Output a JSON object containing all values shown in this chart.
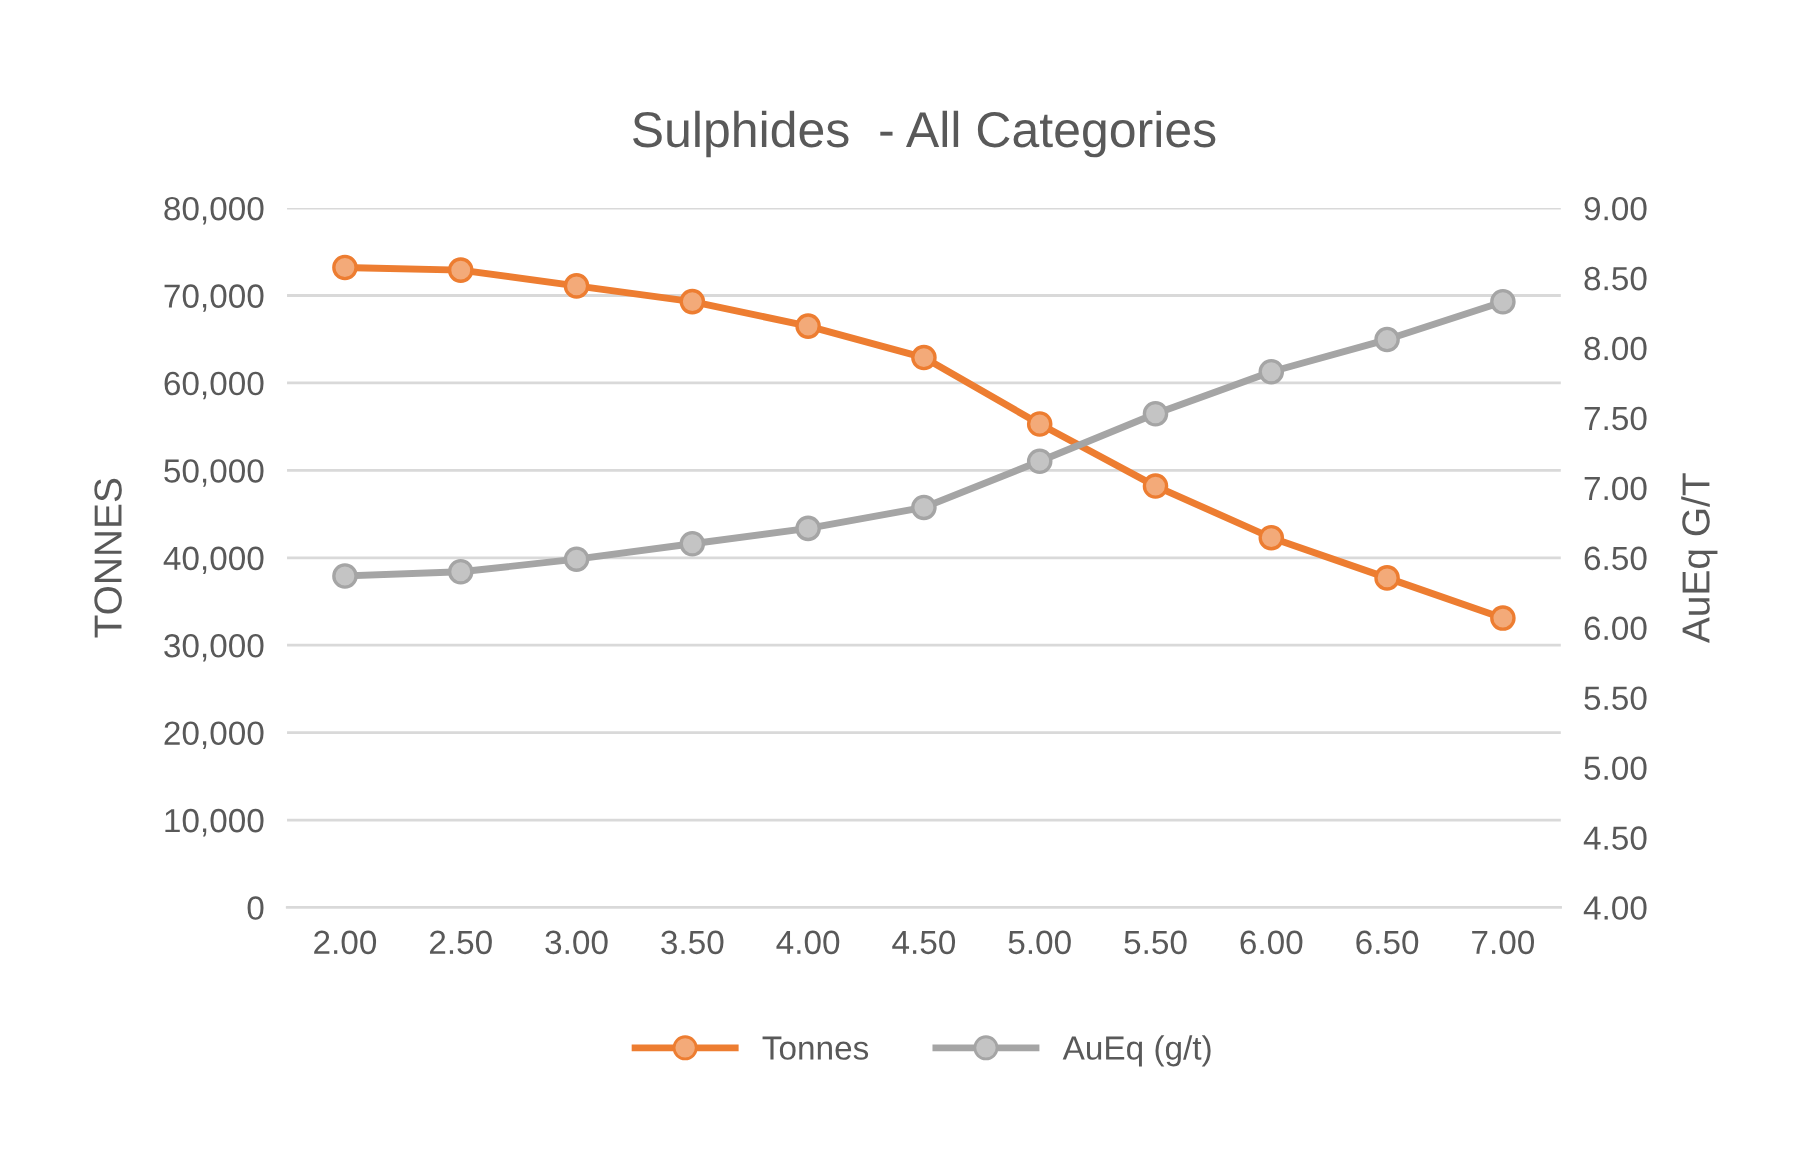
{
  "chart_data": {
    "type": "line",
    "title": "Sulphides  - All Categories",
    "ylabel": "TONNES",
    "y2label": "AuEq G/T",
    "categories": [
      "2.00",
      "2.50",
      "3.00",
      "3.50",
      "4.00",
      "4.50",
      "5.00",
      "5.50",
      "6.00",
      "6.50",
      "7.00"
    ],
    "series": [
      {
        "name": "Tonnes",
        "color": "#ed7d31",
        "values": [
          73200,
          72900,
          71100,
          69300,
          66500,
          62900,
          55300,
          48200,
          42300,
          37700,
          33100
        ]
      },
      {
        "name": "AuEq (g/t)",
        "color": "#a5a5a5",
        "axis": "y2",
        "values": [
          6.37,
          6.4,
          6.49,
          6.6,
          6.71,
          6.86,
          7.19,
          7.53,
          7.83,
          8.06,
          8.33
        ]
      }
    ],
    "ylim": [
      0,
      80000
    ],
    "yticks": [
      {
        "value": 0,
        "label": "0"
      },
      {
        "value": 10000,
        "label": "10,000"
      },
      {
        "value": 20000,
        "label": "20,000"
      },
      {
        "value": 30000,
        "label": "30,000"
      },
      {
        "value": 40000,
        "label": "40,000"
      },
      {
        "value": 50000,
        "label": "50,000"
      },
      {
        "value": 60000,
        "label": "60,000"
      },
      {
        "value": 70000,
        "label": "70,000"
      },
      {
        "value": 80000,
        "label": "80,000"
      }
    ],
    "y2lim": [
      4,
      9
    ],
    "y2ticks": [
      {
        "value": 4,
        "label": "4.00"
      },
      {
        "value": 4.5,
        "label": "4.50"
      },
      {
        "value": 5,
        "label": "5.00"
      },
      {
        "value": 5.5,
        "label": "5.50"
      },
      {
        "value": 6,
        "label": "6.00"
      },
      {
        "value": 6.5,
        "label": "6.50"
      },
      {
        "value": 7,
        "label": "7.00"
      },
      {
        "value": 7.5,
        "label": "7.50"
      },
      {
        "value": 8,
        "label": "8.00"
      },
      {
        "value": 8.5,
        "label": "8.50"
      },
      {
        "value": 9,
        "label": "9.00"
      }
    ],
    "grid": "y",
    "legend": "bottom",
    "marker": "circle",
    "line_style": "solid"
  }
}
